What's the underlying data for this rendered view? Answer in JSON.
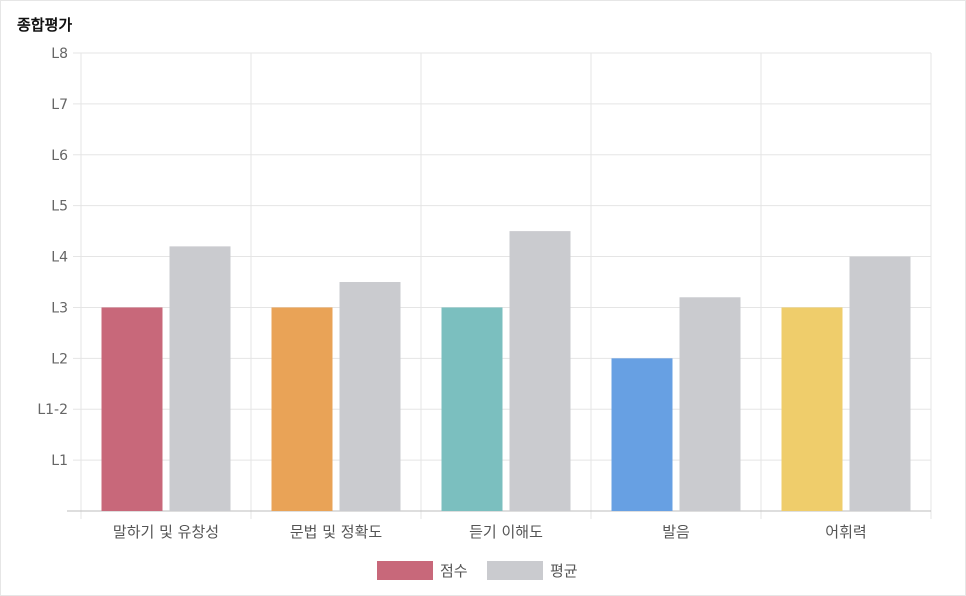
{
  "title": "종합평가",
  "chart_data": {
    "type": "bar",
    "categories": [
      "말하기 및 유창성",
      "문법 및 정확도",
      "듣기 이해도",
      "발음",
      "어휘력"
    ],
    "y_tick_labels": [
      "L1",
      "L1-2",
      "L2",
      "L3",
      "L4",
      "L5",
      "L6",
      "L7",
      "L8"
    ],
    "ylim": [
      0,
      9
    ],
    "series": [
      {
        "name": "점수",
        "values": [
          4,
          4,
          4,
          3,
          4
        ],
        "colors": [
          "#c8687a",
          "#e9a357",
          "#7bbfbf",
          "#67a0e3",
          "#efcd6b"
        ]
      },
      {
        "name": "평균",
        "values": [
          5.2,
          4.5,
          5.5,
          4.2,
          5.0
        ],
        "colors": [
          "#cacbcf",
          "#cacbcf",
          "#cacbcf",
          "#cacbcf",
          "#cacbcf"
        ]
      }
    ],
    "grid": true,
    "legend_position": "bottom"
  }
}
